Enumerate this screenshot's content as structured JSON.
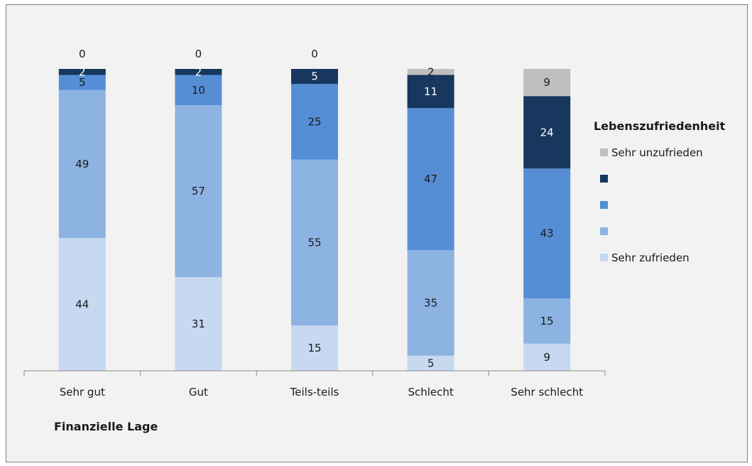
{
  "chart_data": {
    "type": "bar",
    "stacked": true,
    "normalized_percent": true,
    "categories": [
      "Sehr gut",
      "Gut",
      "Teils-teils",
      "Schlecht",
      "Sehr schlecht"
    ],
    "series": [
      {
        "name": "Sehr zufrieden",
        "color": "#c6d9f1",
        "values": [
          44,
          31,
          15,
          5,
          9
        ]
      },
      {
        "name": "",
        "color": "#8db3e2",
        "values": [
          49,
          57,
          55,
          35,
          15
        ]
      },
      {
        "name": "",
        "color": "#558ed5",
        "values": [
          5,
          10,
          25,
          47,
          43
        ]
      },
      {
        "name": "",
        "color": "#17375e",
        "values": [
          2,
          2,
          5,
          11,
          24
        ]
      },
      {
        "name": "Sehr unzufrieden",
        "color": "#bfbfbf",
        "values": [
          0,
          0,
          0,
          2,
          9
        ]
      }
    ],
    "xlabel": "Finanzielle Lage",
    "ylabel": "",
    "legend_title": "Lebenszufriedenheit",
    "legend_position": "right",
    "grid": false,
    "ylim": [
      0,
      100
    ]
  }
}
